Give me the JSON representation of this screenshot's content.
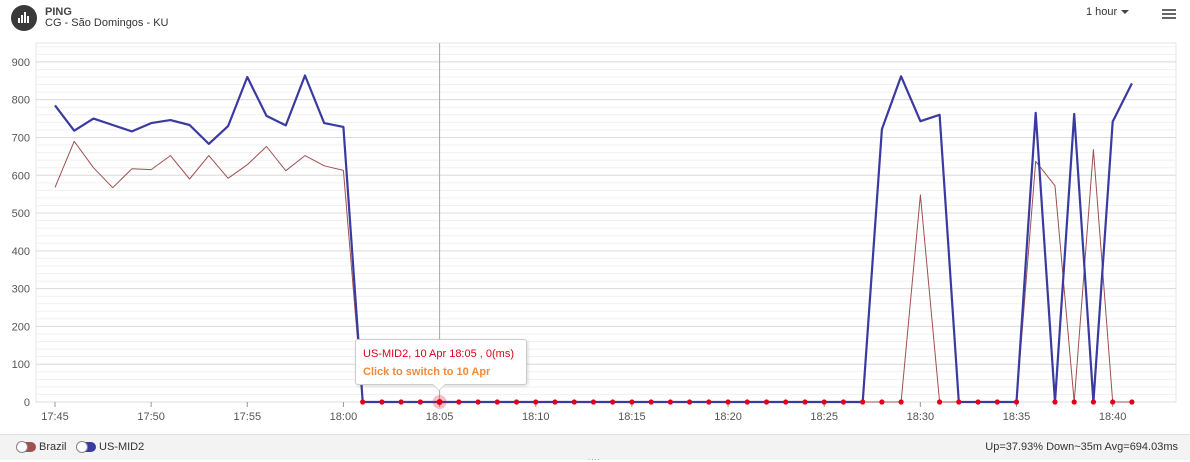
{
  "header": {
    "title": "PING",
    "subtitle": "CG - São Domingos - KU",
    "app_icon": "bar-chart-icon",
    "range_label": "1 hour",
    "menu_icon": "hamburger-menu-icon"
  },
  "tooltip": {
    "line1": "US-MID2, 10 Apr 18:05 , 0(ms)",
    "line2": "Click to switch to 10 Apr",
    "line1_color": "#e0001b",
    "line2_color": "#f28a3b"
  },
  "legend": [
    {
      "name": "Brazil",
      "color": "#a05050"
    },
    {
      "name": "US-MID2",
      "color": "#3a3aa0"
    }
  ],
  "footer": {
    "stats": "Up=37.93%  Down~35m  Avg=694.03ms",
    "grip": "...."
  },
  "chart_data": {
    "type": "line",
    "x_start": "17:45",
    "x_step_minutes": 1,
    "x_tick_labels": [
      "17:45",
      "17:50",
      "17:55",
      "18:00",
      "18:05",
      "18:10",
      "18:15",
      "18:20",
      "18:25",
      "18:30",
      "18:35",
      "18:40"
    ],
    "ylim": [
      0,
      950
    ],
    "y_ticks": [
      0,
      100,
      200,
      300,
      400,
      500,
      600,
      700,
      800,
      900
    ],
    "grid": true,
    "crosshair_at": "18:05",
    "series": [
      {
        "name": "US-MID2",
        "color": "#3a3aa0",
        "values": [
          785,
          718,
          750,
          733,
          716,
          738,
          746,
          733,
          683,
          730,
          860,
          757,
          732,
          864,
          738,
          728,
          0,
          0,
          0,
          0,
          0,
          0,
          0,
          0,
          0,
          0,
          0,
          0,
          0,
          0,
          0,
          0,
          0,
          0,
          0,
          0,
          0,
          0,
          0,
          0,
          0,
          0,
          0,
          722,
          862,
          743,
          760,
          0,
          0,
          0,
          0,
          765,
          0,
          762,
          0,
          742,
          843
        ]
      },
      {
        "name": "Brazil",
        "color": "#a05050",
        "values": [
          568,
          690,
          620,
          567,
          617,
          615,
          652,
          590,
          652,
          592,
          628,
          676,
          612,
          652,
          625,
          613,
          0,
          0,
          0,
          0,
          0,
          0,
          0,
          0,
          0,
          0,
          0,
          0,
          0,
          0,
          0,
          0,
          0,
          0,
          0,
          0,
          0,
          0,
          0,
          0,
          0,
          0,
          0,
          0,
          0,
          548,
          0,
          0,
          0,
          0,
          0,
          637,
          572,
          0,
          668,
          0,
          0
        ]
      }
    ],
    "zero_markers_color": "#e0001b"
  }
}
